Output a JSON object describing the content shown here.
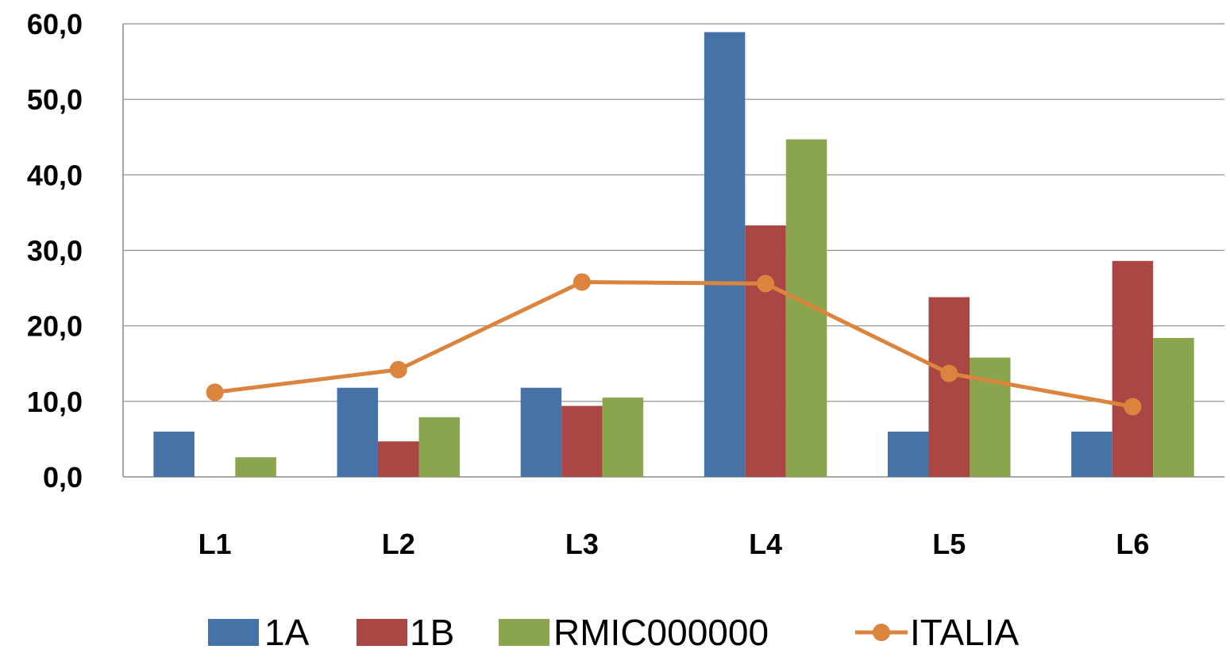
{
  "chart_data": {
    "type": "bar",
    "categories": [
      "L1",
      "L2",
      "L3",
      "L4",
      "L5",
      "L6"
    ],
    "series": [
      {
        "name": "1A",
        "type": "bar",
        "color": "#4572A7",
        "values": [
          6.0,
          11.8,
          11.8,
          58.9,
          6.0,
          6.0
        ]
      },
      {
        "name": "1B",
        "type": "bar",
        "color": "#AA4643",
        "values": [
          0.0,
          4.7,
          9.4,
          33.3,
          23.8,
          28.6
        ]
      },
      {
        "name": "RMIC000000",
        "type": "bar",
        "color": "#89A54E",
        "values": [
          2.6,
          7.9,
          10.5,
          44.7,
          15.8,
          18.4
        ]
      },
      {
        "name": "ITALIA",
        "type": "line",
        "color": "#DB843D",
        "marker": "circle",
        "values": [
          11.2,
          14.2,
          25.8,
          25.6,
          13.7,
          9.3
        ]
      }
    ],
    "ylim": [
      0,
      60
    ],
    "yticks": [
      "0,0",
      "10,0",
      "20,0",
      "30,0",
      "40,0",
      "50,0",
      "60,0"
    ],
    "grid": true,
    "legend_position": "bottom",
    "title": "",
    "xlabel": "",
    "ylabel": ""
  }
}
